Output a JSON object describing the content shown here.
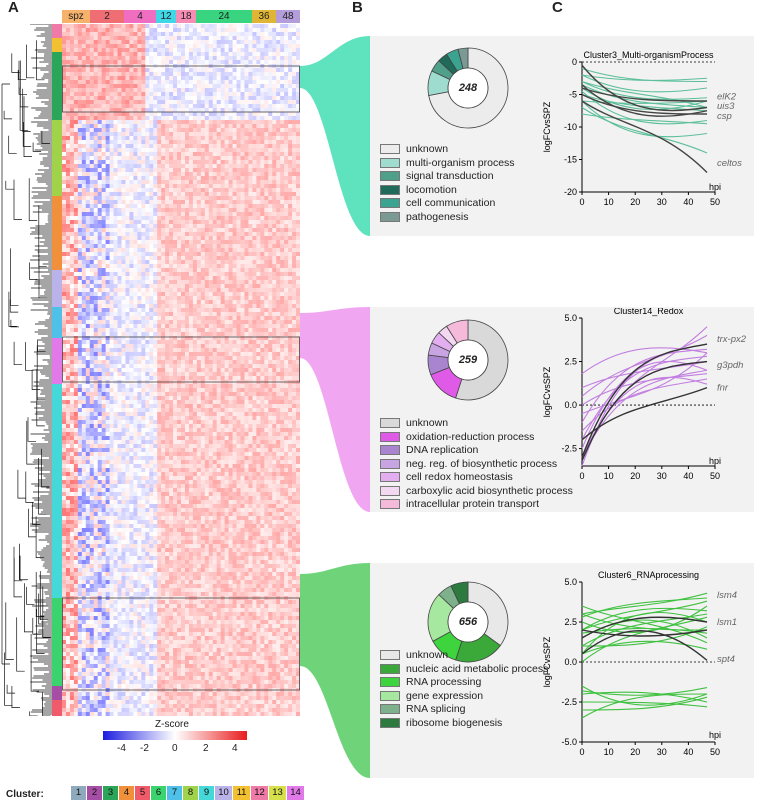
{
  "panels": {
    "a": "A",
    "b": "B",
    "c": "C"
  },
  "timepoints": [
    {
      "label": "spz",
      "color": "#f6b26b"
    },
    {
      "label": "2",
      "color": "#ee6e73"
    },
    {
      "label": "4",
      "color": "#f06ec2"
    },
    {
      "label": "12",
      "color": "#3fd6e6"
    },
    {
      "label": "18",
      "color": "#f78db4"
    },
    {
      "label": "24",
      "color": "#39d47f"
    },
    {
      "label": "36",
      "color": "#e0b434"
    },
    {
      "label": "48",
      "color": "#b39ddb"
    }
  ],
  "zscore": {
    "title": "Z-score",
    "ticks": [
      "-4",
      "-2",
      "0",
      "2",
      "4"
    ]
  },
  "clusters": {
    "label": "Cluster:",
    "items": [
      {
        "n": "1",
        "color": "#8fa9bd"
      },
      {
        "n": "2",
        "color": "#a64ea6"
      },
      {
        "n": "3",
        "color": "#2aa55a"
      },
      {
        "n": "4",
        "color": "#f0903a"
      },
      {
        "n": "5",
        "color": "#ef5b6a"
      },
      {
        "n": "6",
        "color": "#3bd36e"
      },
      {
        "n": "7",
        "color": "#4fc1e9"
      },
      {
        "n": "8",
        "color": "#a0d34a"
      },
      {
        "n": "9",
        "color": "#45d8d8"
      },
      {
        "n": "10",
        "color": "#b9b3ea"
      },
      {
        "n": "11",
        "color": "#f2c030"
      },
      {
        "n": "12",
        "color": "#ef7aa8"
      },
      {
        "n": "13",
        "color": "#d5e04a"
      },
      {
        "n": "14",
        "color": "#e17ae8"
      }
    ]
  },
  "groups": [
    {
      "count": "248",
      "connector_color": "#4ee0b8",
      "pie": [
        {
          "label": "unknown",
          "value": 72,
          "color": "#ececec"
        },
        {
          "label": "multi-organism process",
          "value": 10,
          "color": "#9fdcd0"
        },
        {
          "label": "signal transduction",
          "value": 5,
          "color": "#4f9f8b"
        },
        {
          "label": "locomotion",
          "value": 4,
          "color": "#1f6a58"
        },
        {
          "label": "cell communication",
          "value": 5,
          "color": "#3aa491"
        },
        {
          "label": "pathogenesis",
          "value": 4,
          "color": "#7b9a93"
        }
      ],
      "plot": {
        "title": "Cluster3_Multi-organismProcess",
        "ylabel": "logFCvsSPZ",
        "xlabel": "hpi",
        "yticks": [
          "0",
          "-5",
          "-10",
          "-15",
          "-20"
        ],
        "xticks": [
          "0",
          "10",
          "20",
          "30",
          "40",
          "50"
        ],
        "genes": [
          "elK2",
          "uis3",
          "csp",
          "celtos"
        ]
      }
    },
    {
      "count": "259",
      "connector_color": "#ef9cf0",
      "pie": [
        {
          "label": "unknown",
          "value": 55,
          "color": "#d9d9d9"
        },
        {
          "label": "oxidation-reduction process",
          "value": 14,
          "color": "#e05ae8"
        },
        {
          "label": "DNA replication",
          "value": 8,
          "color": "#a985cf"
        },
        {
          "label": "neg. reg. of biosynthetic process",
          "value": 5,
          "color": "#c9a4e3"
        },
        {
          "label": "cell redox homeostasis",
          "value": 5,
          "color": "#e2aef0"
        },
        {
          "label": "carboxylic acid biosynthetic process",
          "value": 4,
          "color": "#f3d8f2"
        },
        {
          "label": "intracellular protein transport",
          "value": 9,
          "color": "#f5b9da"
        }
      ],
      "plot": {
        "title": "Cluster14_Redox",
        "ylabel": "logFCvsSPZ",
        "xlabel": "hpi",
        "yticks": [
          "5.0",
          "2.5",
          "0.0",
          "-2.5"
        ],
        "xticks": [
          "0",
          "10",
          "20",
          "30",
          "40",
          "50"
        ],
        "genes": [
          "trx-px2",
          "g3pdh",
          "fnr"
        ]
      }
    },
    {
      "count": "656",
      "connector_color": "#5fcf6a",
      "pie": [
        {
          "label": "unknown",
          "value": 35,
          "color": "#e8e8e8"
        },
        {
          "label": "nucleic acid metabolic process",
          "value": 20,
          "color": "#3aa93a"
        },
        {
          "label": "RNA processing",
          "value": 12,
          "color": "#3dd43d"
        },
        {
          "label": "gene expression",
          "value": 20,
          "color": "#a7e8a0"
        },
        {
          "label": "RNA splicing",
          "value": 6,
          "color": "#7fb08c"
        },
        {
          "label": "ribosome biogenesis",
          "value": 7,
          "color": "#2c7a3e"
        }
      ],
      "plot": {
        "title": "Cluster6_RNAprocessing",
        "ylabel": "logFCvsSPZ",
        "xlabel": "hpi",
        "yticks": [
          "5.0",
          "2.5",
          "0.0",
          "-2.5",
          "-5.0"
        ],
        "xticks": [
          "0",
          "10",
          "20",
          "30",
          "40",
          "50"
        ],
        "genes": [
          "lsm4",
          "lsm1",
          "spt4"
        ]
      }
    }
  ]
}
